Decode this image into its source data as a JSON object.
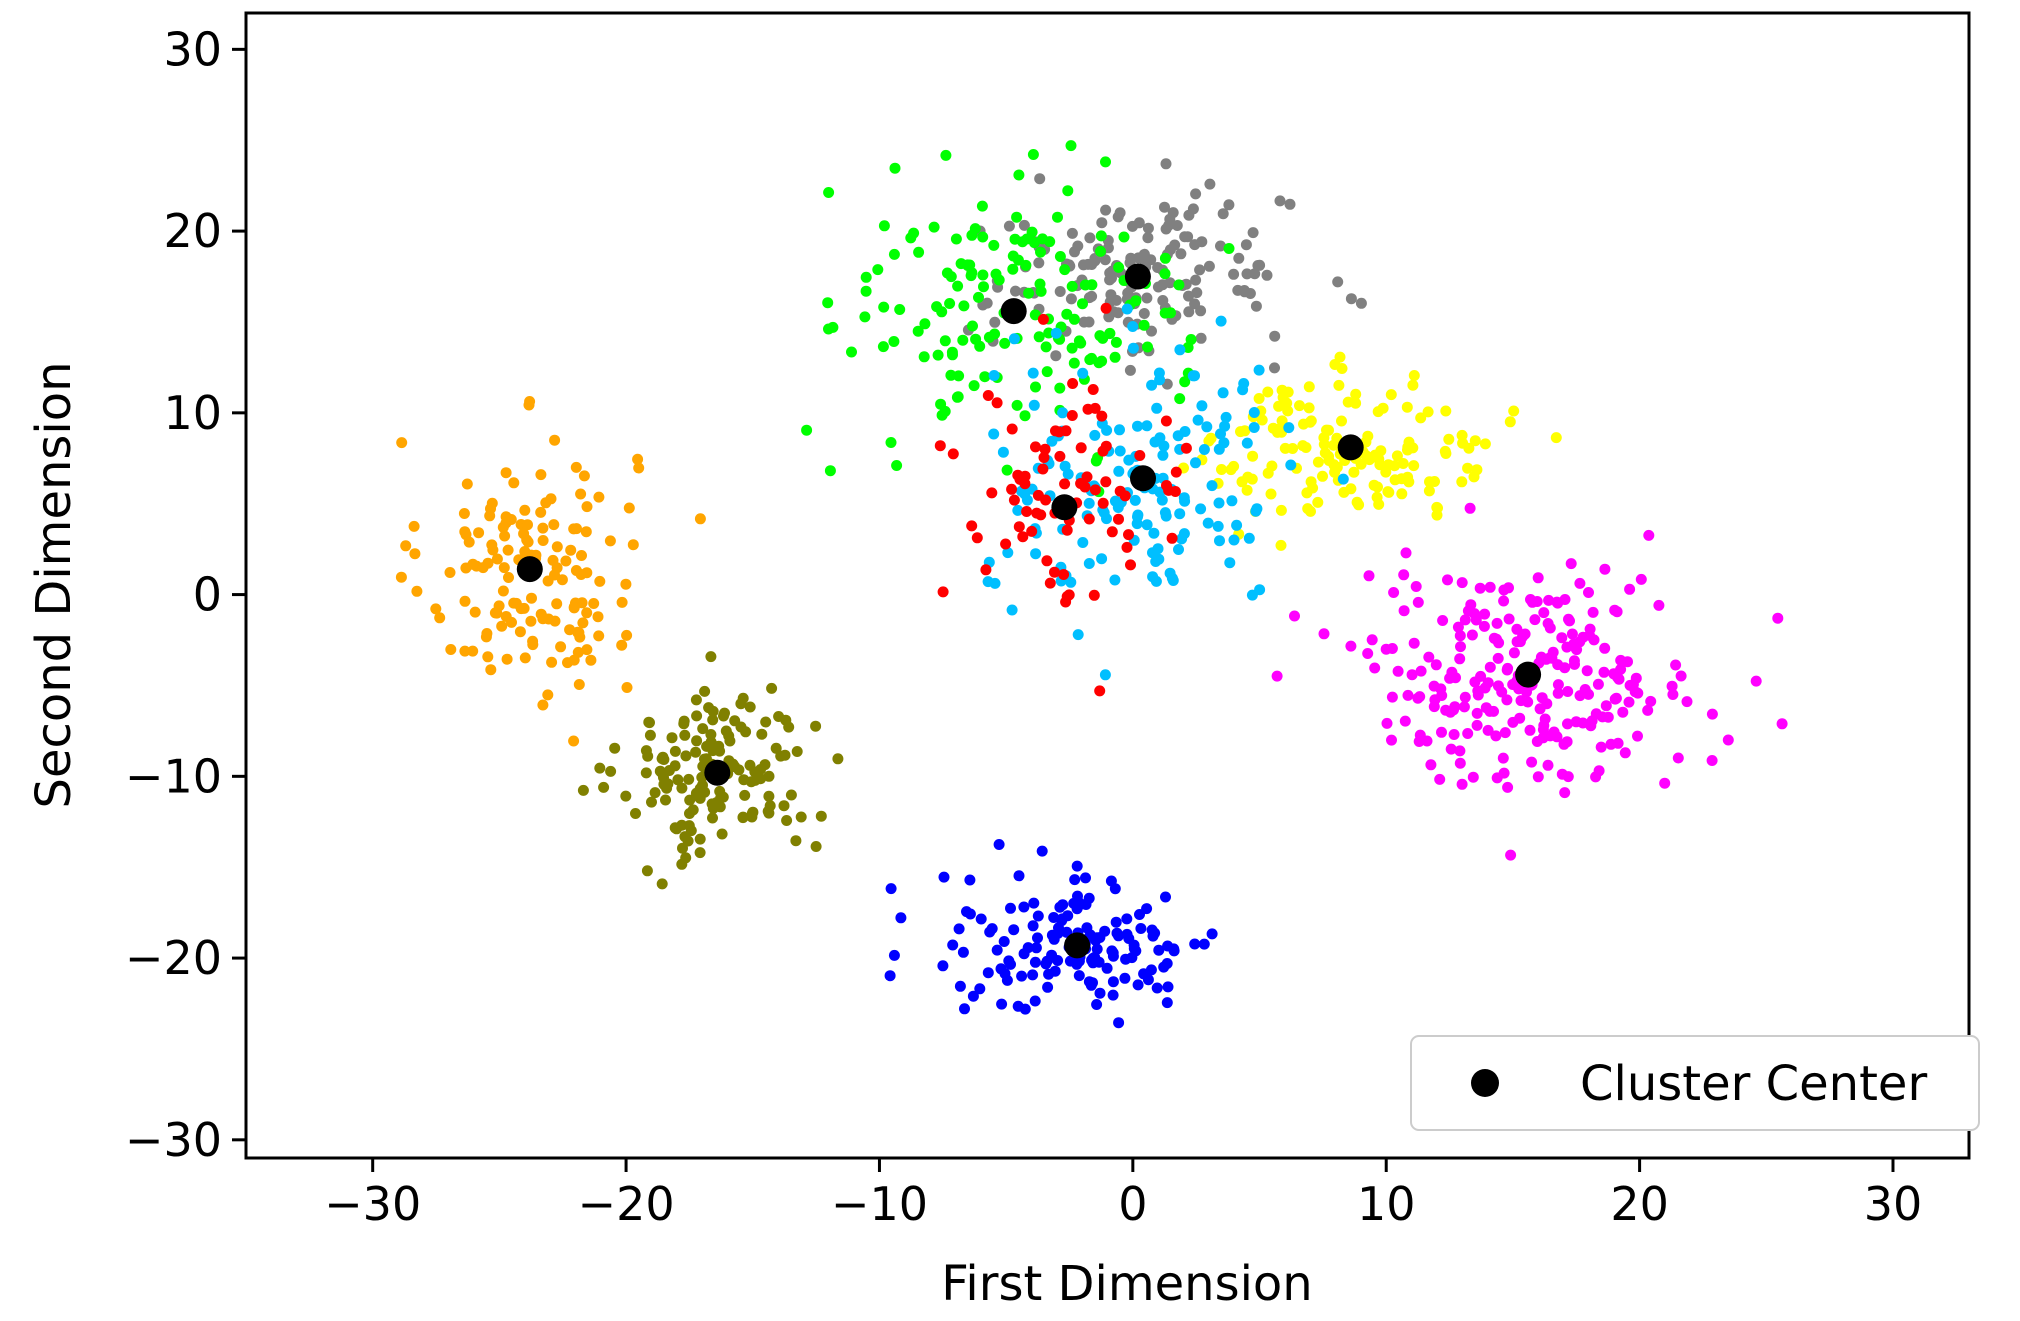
{
  "chart_data": {
    "type": "scatter",
    "xlabel": "First Dimension",
    "ylabel": "Second Dimension",
    "xlim": [
      -35,
      33
    ],
    "ylim": [
      -31,
      32
    ],
    "xticks": [
      -30,
      -20,
      -10,
      0,
      10,
      20,
      30
    ],
    "yticks": [
      -30,
      -20,
      -10,
      0,
      10,
      20,
      30
    ],
    "xtick_labels": [
      "−30",
      "−20",
      "−10",
      "0",
      "10",
      "20",
      "30"
    ],
    "ytick_labels": [
      "−30",
      "−20",
      "−10",
      "0",
      "10",
      "20",
      "30"
    ],
    "grid": false,
    "legend": {
      "position": "bottom-right",
      "entries": [
        "Cluster Center"
      ]
    },
    "clusters": [
      {
        "color": "#ffa500",
        "center": [
          -23.8,
          1.4
        ],
        "spread": [
          3.8,
          6.5
        ],
        "n": 150
      },
      {
        "color": "#808000",
        "center": [
          -16.4,
          -9.8
        ],
        "spread": [
          3.4,
          4.3
        ],
        "n": 150
      },
      {
        "color": "#0000ff",
        "center": [
          -2.2,
          -19.3
        ],
        "spread": [
          5.2,
          3.6
        ],
        "n": 150
      },
      {
        "color": "#ff00ff",
        "center": [
          15.6,
          -4.4
        ],
        "spread": [
          6.2,
          5.5
        ],
        "n": 250
      },
      {
        "color": "#ffff00",
        "center": [
          8.6,
          8.1
        ],
        "spread": [
          5.2,
          3.5
        ],
        "n": 150
      },
      {
        "color": "#808080",
        "center": [
          0.2,
          17.5
        ],
        "spread": [
          5.5,
          4.0
        ],
        "n": 160
      },
      {
        "color": "#00ff00",
        "center": [
          -4.7,
          15.6
        ],
        "spread": [
          6.0,
          7.0
        ],
        "n": 160
      },
      {
        "color": "#00bfff",
        "center": [
          0.4,
          6.4
        ],
        "spread": [
          5.5,
          6.5
        ],
        "n": 160
      },
      {
        "color": "#ff0000",
        "center": [
          -2.7,
          4.8
        ],
        "spread": [
          4.5,
          6.0
        ],
        "n": 80
      }
    ],
    "cluster_centers": [
      {
        "x": -23.8,
        "y": 1.4
      },
      {
        "x": -16.4,
        "y": -9.8
      },
      {
        "x": -2.2,
        "y": -19.3
      },
      {
        "x": 15.6,
        "y": -4.4
      },
      {
        "x": 8.6,
        "y": 8.1
      },
      {
        "x": 0.2,
        "y": 17.5
      },
      {
        "x": -4.7,
        "y": 15.6
      },
      {
        "x": 0.4,
        "y": 6.4
      },
      {
        "x": -2.7,
        "y": 4.8
      }
    ],
    "center_color": "#000000"
  }
}
